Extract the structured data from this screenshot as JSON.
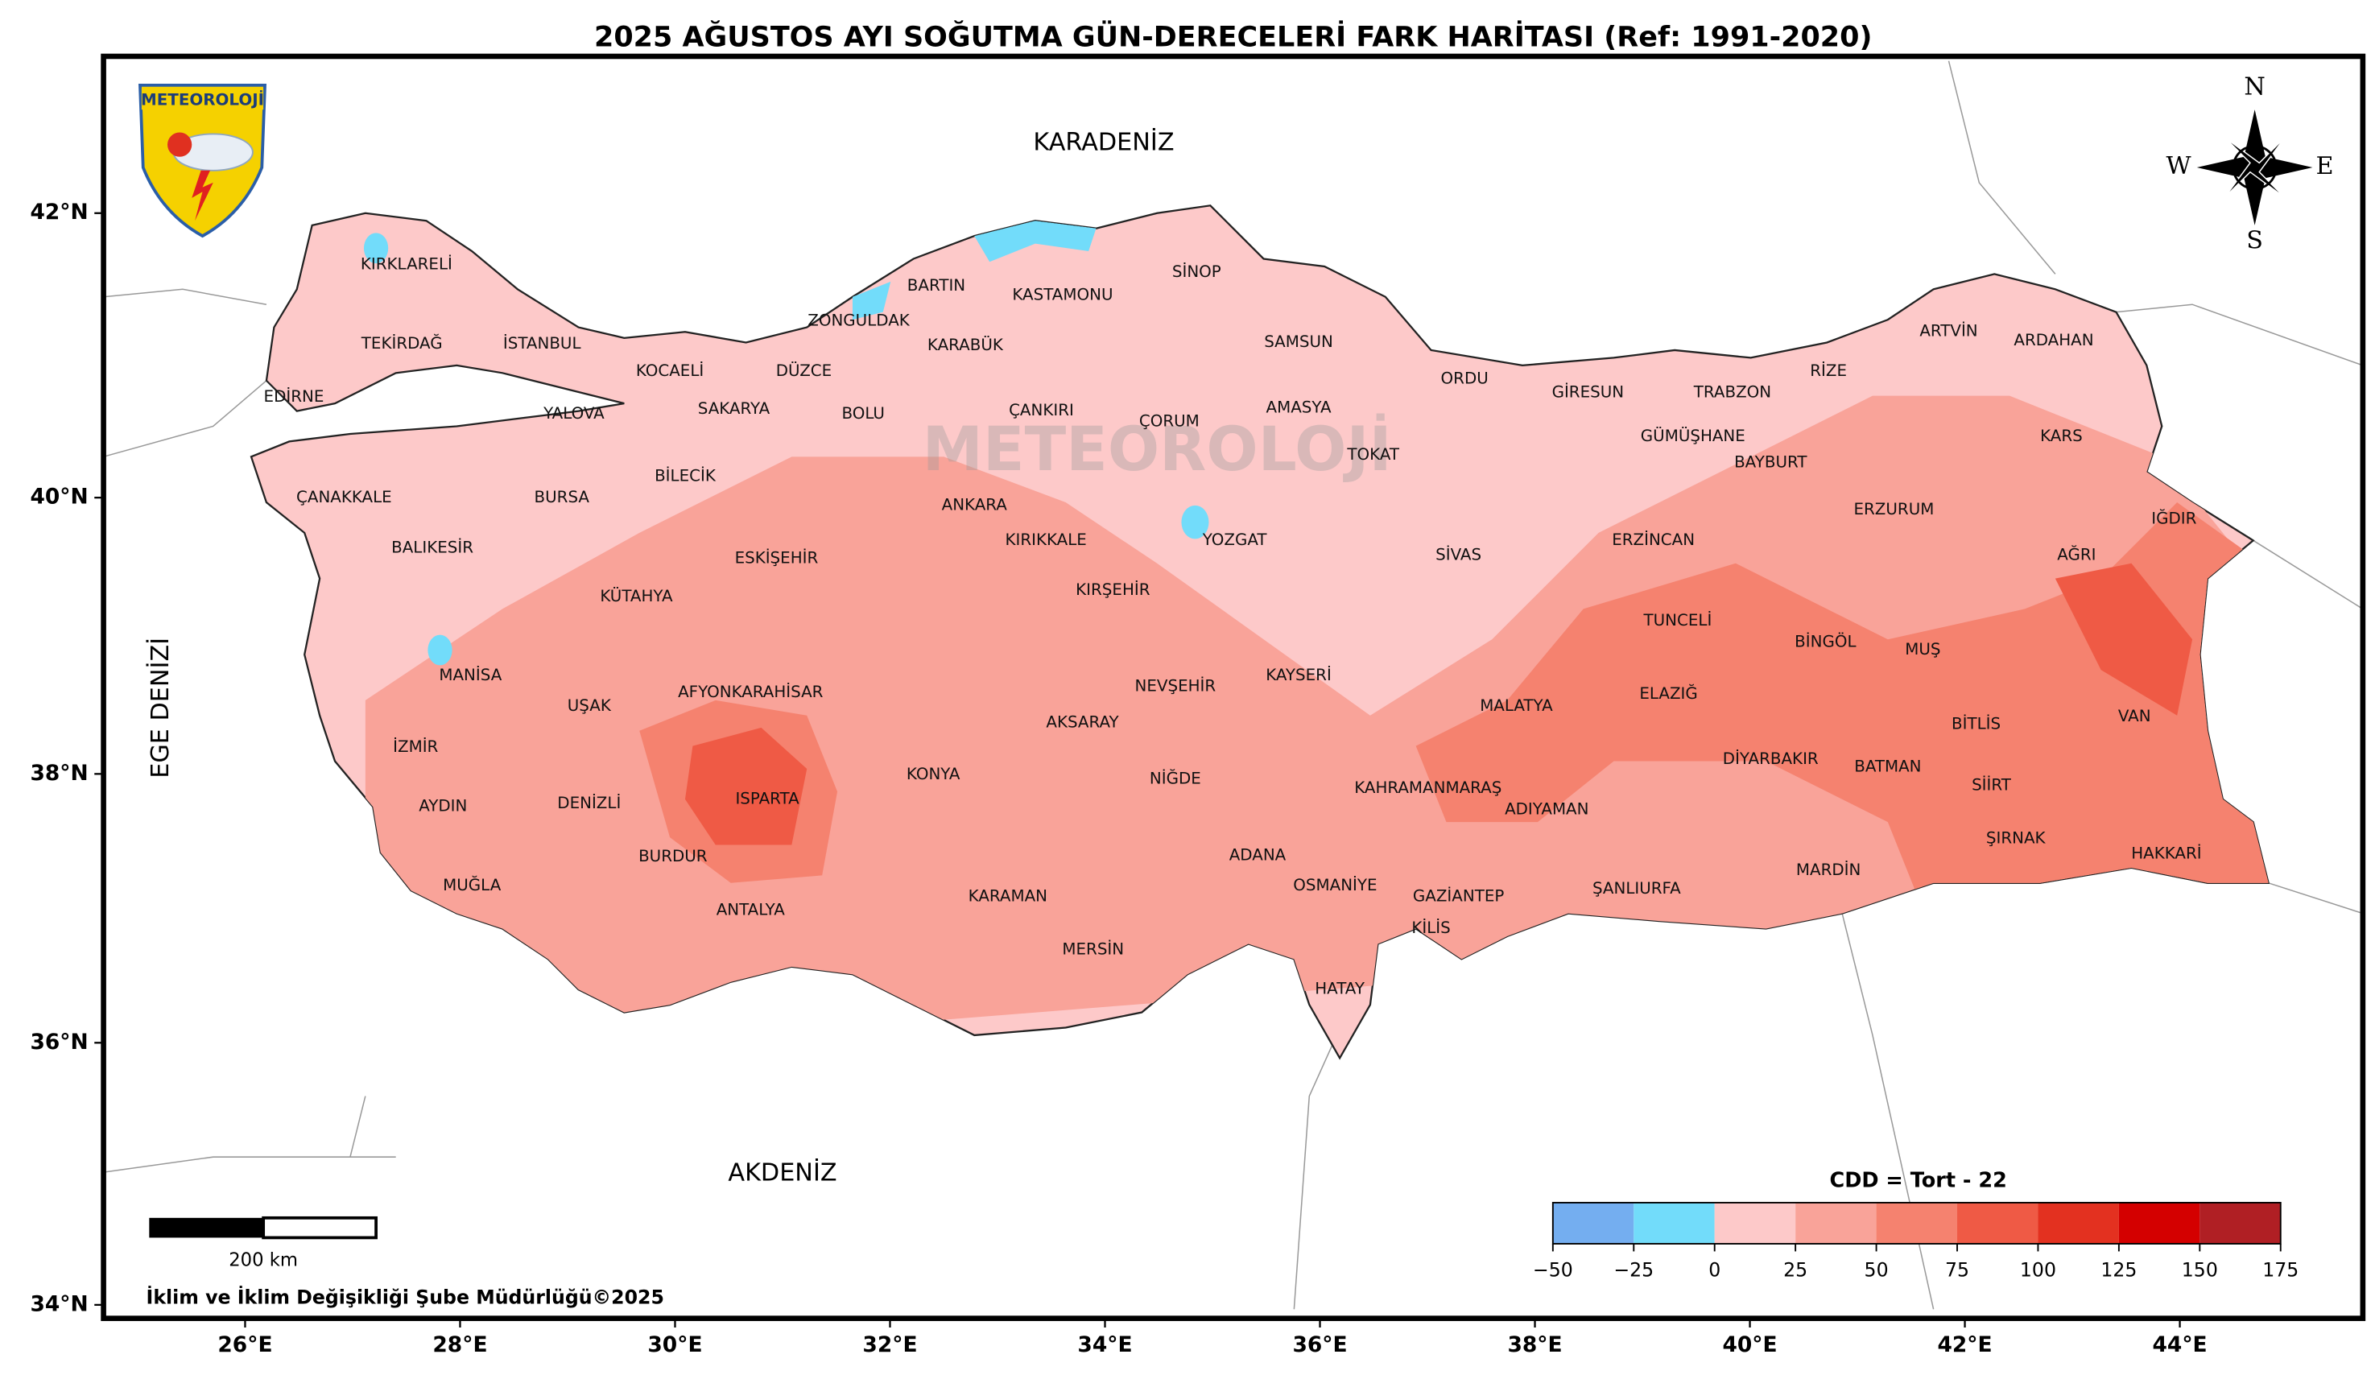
{
  "title": "2025 AĞUSTOS AYI SOĞUTMA GÜN-DERECELERİ FARK HARİTASI (Ref: 1991-2020)",
  "logo": "METEOROLOJİ",
  "seas": [
    "KARADENİZ",
    "AKDENİZ",
    "EGE DENİZİ"
  ],
  "compass": [
    "N",
    "W",
    "E",
    "S"
  ],
  "axes": {
    "xticks": [
      {
        "value": 26,
        "label": "26°E"
      },
      {
        "value": 28,
        "label": "28°E"
      },
      {
        "value": 30,
        "label": "30°E"
      },
      {
        "value": 32,
        "label": "32°E"
      },
      {
        "value": 34,
        "label": "34°E"
      },
      {
        "value": 36,
        "label": "36°E"
      },
      {
        "value": 38,
        "label": "38°E"
      },
      {
        "value": 40,
        "label": "40°E"
      },
      {
        "value": 42,
        "label": "42°E"
      },
      {
        "value": 44,
        "label": "44°E"
      }
    ],
    "yticks": [
      {
        "value": 42,
        "label": "42°N"
      },
      {
        "value": 40,
        "label": "40°N"
      },
      {
        "value": 38,
        "label": "38°N"
      },
      {
        "value": 36,
        "label": "36°N"
      },
      {
        "value": 34,
        "label": "34°N"
      }
    ]
  },
  "provinces": [
    "KIRKLARELİ",
    "TEKİRDAĞ",
    "İSTANBUL",
    "EDİRNE",
    "YALOVA",
    "KOCAELİ",
    "SAKARYA",
    "DÜZCE",
    "ZONGULDAK",
    "BARTIN",
    "KASTAMONU",
    "SİNOP",
    "KARABÜK",
    "BOLU",
    "ÇANKIRI",
    "ÇORUM",
    "SAMSUN",
    "AMASYA",
    "ORDU",
    "GİRESUN",
    "TRABZON",
    "RİZE",
    "ARTVİN",
    "ARDAHAN",
    "KARS",
    "GÜMÜŞHANE",
    "BAYBURT",
    "TOKAT",
    "ÇANAKKALE",
    "BURSA",
    "BİLECİK",
    "ESKİŞEHİR",
    "ANKARA",
    "KIRIKKALE",
    "YOZGAT",
    "SİVAS",
    "ERZİNCAN",
    "ERZURUM",
    "AĞRI",
    "IĞDIR",
    "BALIKESİR",
    "KÜTAHYA",
    "KIRŞEHİR",
    "TUNCELİ",
    "BİNGÖL",
    "MUŞ",
    "MANİSA",
    "UŞAK",
    "AFYONKARAHİSAR",
    "NEVŞEHİR",
    "KAYSERİ",
    "MALATYA",
    "ELAZIĞ",
    "BİTLİS",
    "VAN",
    "İZMİR",
    "AKSARAY",
    "DİYARBAKIR",
    "BATMAN",
    "SİİRT",
    "KONYA",
    "NİĞDE",
    "KAHRAMANMARAŞ",
    "ISPARTA",
    "AYDIN",
    "DENİZLİ",
    "ADIYAMAN",
    "ŞIRNAK",
    "HAKKARİ",
    "BURDUR",
    "ADANA",
    "MARDİN",
    "MUĞLA",
    "OSMANİYE",
    "GAZİANTEP",
    "ŞANLIURFA",
    "KARAMAN",
    "ANTALYA",
    "KİLİS",
    "MERSİN",
    "HATAY"
  ],
  "colorbar": {
    "label": "CDD = Tort - 22",
    "ticks": [
      {
        "value": -50,
        "label": "−50"
      },
      {
        "value": -25,
        "label": "−25"
      },
      0,
      25,
      50,
      75,
      100,
      125,
      150,
      175
    ],
    "colors": [
      "#74aef0",
      "#72dcfa",
      "#fdc9c9",
      "#f9a399",
      "#f5826f",
      "#ef5a45",
      "#e33120",
      "#d40000",
      "#b01f24"
    ]
  },
  "scale_bar": "200 km",
  "credit": "İklim ve İklim Değişikliği Şube Müdürlüğü©2025"
}
